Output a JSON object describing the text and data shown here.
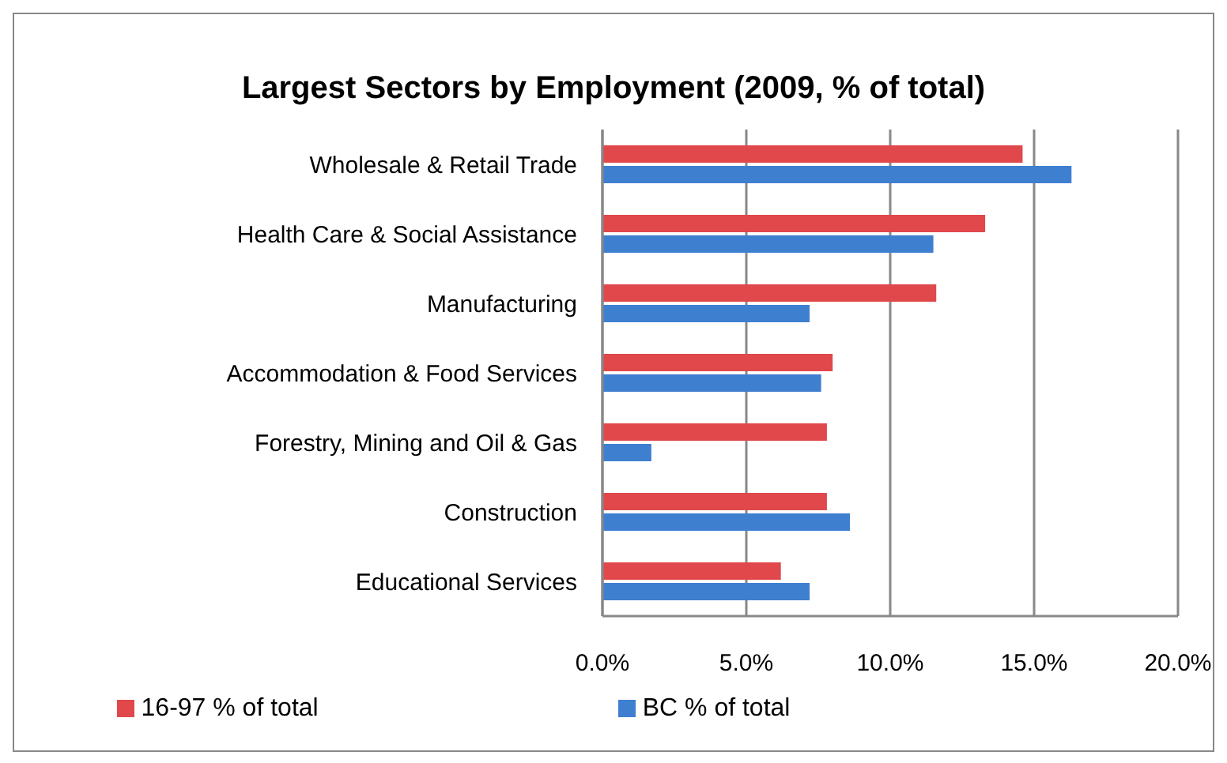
{
  "chart_data": {
    "type": "bar",
    "orientation": "horizontal",
    "title": "Largest Sectors by Employment (2009, % of total)",
    "categories": [
      "Wholesale & Retail Trade",
      "Health Care & Social Assistance",
      "Manufacturing",
      "Accommodation & Food Services",
      "Forestry, Mining and Oil & Gas",
      "Construction",
      "Educational Services"
    ],
    "series": [
      {
        "name": "16-97 % of total",
        "color": "#e0484b",
        "values": [
          14.6,
          13.3,
          11.6,
          8.0,
          7.8,
          7.8,
          6.2
        ]
      },
      {
        "name": "BC % of total",
        "color": "#3f7fd0",
        "values": [
          16.3,
          11.5,
          7.2,
          7.6,
          1.7,
          8.6,
          7.2
        ]
      }
    ],
    "xlim": [
      0,
      20
    ],
    "xticks": [
      {
        "value": 0,
        "label": "0.0%"
      },
      {
        "value": 5,
        "label": "5.0%"
      },
      {
        "value": 10,
        "label": "10.0%"
      },
      {
        "value": 15,
        "label": "15.0%"
      },
      {
        "value": 20,
        "label": "20.0%"
      }
    ],
    "grid": "x",
    "legend": "bottom"
  }
}
